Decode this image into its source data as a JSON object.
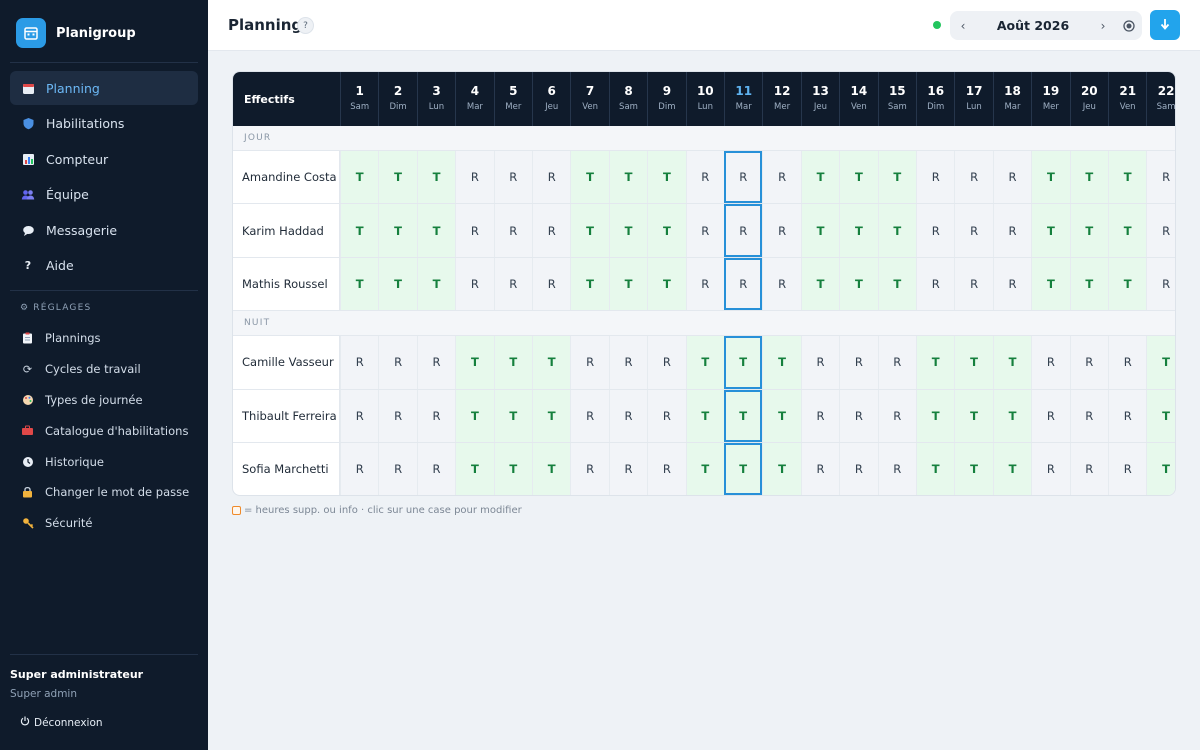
{
  "app": {
    "name": "Planigroup"
  },
  "sidebar": {
    "nav": [
      {
        "label": "Planning",
        "icon": "calendar-icon",
        "active": true
      },
      {
        "label": "Habilitations",
        "icon": "shield-icon"
      },
      {
        "label": "Compteur",
        "icon": "bar-chart-icon"
      },
      {
        "label": "Équipe",
        "icon": "team-icon"
      },
      {
        "label": "Messagerie",
        "icon": "speech-bubble-icon"
      },
      {
        "label": "Aide",
        "icon": "question-icon"
      }
    ],
    "settings_title": "RÉGLAGES",
    "settings": [
      {
        "label": "Plannings",
        "icon": "clipboard-icon"
      },
      {
        "label": "Cycles de travail",
        "icon": "cycle-icon"
      },
      {
        "label": "Types de journée",
        "icon": "palette-icon"
      },
      {
        "label": "Catalogue d'habilitations",
        "icon": "toolbox-icon"
      },
      {
        "label": "Historique",
        "icon": "clock-icon"
      },
      {
        "label": "Changer le mot de passe",
        "icon": "lock-icon"
      },
      {
        "label": "Sécurité",
        "icon": "key-icon"
      }
    ],
    "user": {
      "role": "Super administrateur",
      "sub": "Super admin"
    },
    "logout_label": "Déconnexion"
  },
  "header": {
    "title": "Planning",
    "help": "?",
    "month": "Août 2026",
    "prev": "‹",
    "next": "›",
    "status_color": "#22c55e",
    "accent": "#22a4ec"
  },
  "grid": {
    "corner_label": "Effectifs",
    "days": [
      {
        "num": "1",
        "name": "Sam"
      },
      {
        "num": "2",
        "name": "Dim"
      },
      {
        "num": "3",
        "name": "Lun"
      },
      {
        "num": "4",
        "name": "Mar"
      },
      {
        "num": "5",
        "name": "Mer"
      },
      {
        "num": "6",
        "name": "Jeu"
      },
      {
        "num": "7",
        "name": "Ven"
      },
      {
        "num": "8",
        "name": "Sam"
      },
      {
        "num": "9",
        "name": "Dim"
      },
      {
        "num": "10",
        "name": "Lun"
      },
      {
        "num": "11",
        "name": "Mar"
      },
      {
        "num": "12",
        "name": "Mer"
      },
      {
        "num": "13",
        "name": "Jeu"
      },
      {
        "num": "14",
        "name": "Ven"
      },
      {
        "num": "15",
        "name": "Sam"
      },
      {
        "num": "16",
        "name": "Dim"
      },
      {
        "num": "17",
        "name": "Lun"
      },
      {
        "num": "18",
        "name": "Mar"
      },
      {
        "num": "19",
        "name": "Mer"
      },
      {
        "num": "20",
        "name": "Jeu"
      },
      {
        "num": "21",
        "name": "Ven"
      },
      {
        "num": "22",
        "name": "Sam"
      }
    ],
    "today_index": 10,
    "groups": [
      {
        "label": "JOUR",
        "rows": [
          {
            "name": "Amandine Costa",
            "shifts": [
              "T",
              "T",
              "T",
              "R",
              "R",
              "R",
              "T",
              "T",
              "T",
              "R",
              "R",
              "R",
              "T",
              "T",
              "T",
              "R",
              "R",
              "R",
              "T",
              "T",
              "T",
              "R"
            ]
          },
          {
            "name": "Karim Haddad",
            "shifts": [
              "T",
              "T",
              "T",
              "R",
              "R",
              "R",
              "T",
              "T",
              "T",
              "R",
              "R",
              "R",
              "T",
              "T",
              "T",
              "R",
              "R",
              "R",
              "T",
              "T",
              "T",
              "R"
            ]
          },
          {
            "name": "Mathis Roussel",
            "shifts": [
              "T",
              "T",
              "T",
              "R",
              "R",
              "R",
              "T",
              "T",
              "T",
              "R",
              "R",
              "R",
              "T",
              "T",
              "T",
              "R",
              "R",
              "R",
              "T",
              "T",
              "T",
              "R"
            ]
          }
        ]
      },
      {
        "label": "NUIT",
        "rows": [
          {
            "name": "Camille Vasseur",
            "shifts": [
              "R",
              "R",
              "R",
              "T",
              "T",
              "T",
              "R",
              "R",
              "R",
              "T",
              "T",
              "T",
              "R",
              "R",
              "R",
              "T",
              "T",
              "T",
              "R",
              "R",
              "R",
              "T"
            ]
          },
          {
            "name": "Thibault Ferreira",
            "shifts": [
              "R",
              "R",
              "R",
              "T",
              "T",
              "T",
              "R",
              "R",
              "R",
              "T",
              "T",
              "T",
              "R",
              "R",
              "R",
              "T",
              "T",
              "T",
              "R",
              "R",
              "R",
              "T"
            ]
          },
          {
            "name": "Sofia Marchetti",
            "shifts": [
              "R",
              "R",
              "R",
              "T",
              "T",
              "T",
              "R",
              "R",
              "R",
              "T",
              "T",
              "T",
              "R",
              "R",
              "R",
              "T",
              "T",
              "T",
              "R",
              "R",
              "R",
              "T"
            ]
          }
        ]
      }
    ],
    "colors": {
      "T_bg": "#e7f9ec",
      "T_text": "#15803d",
      "R_bg": "#f2f4f8",
      "selected_border": "#2790d8"
    }
  },
  "legend": {
    "text": "= heures supp. ou info · clic sur une case pour modifier"
  }
}
